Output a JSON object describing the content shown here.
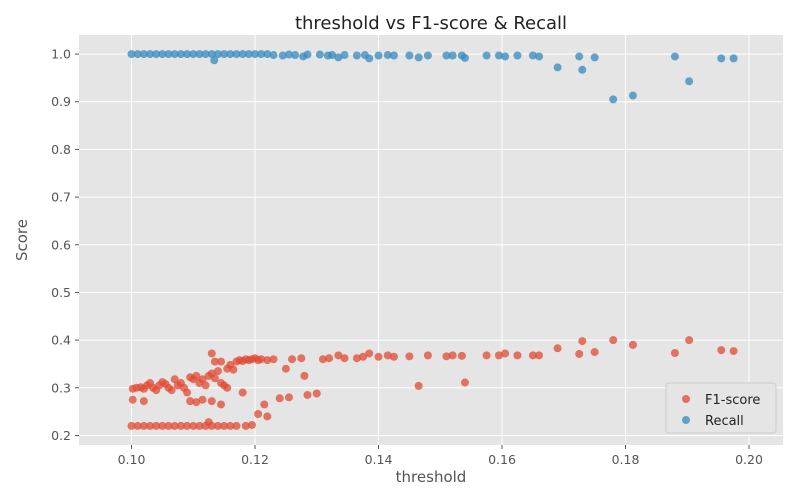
{
  "chart_data": {
    "type": "scatter",
    "title": "threshold vs F1-score & Recall",
    "xlabel": "threshold",
    "ylabel": "Score",
    "xlim": [
      0.0915,
      0.2055
    ],
    "ylim": [
      0.18,
      1.04
    ],
    "xticks": [
      0.1,
      0.12,
      0.14,
      0.16,
      0.18,
      0.2
    ],
    "xtick_labels": [
      "0.10",
      "0.12",
      "0.14",
      "0.16",
      "0.18",
      "0.20"
    ],
    "yticks": [
      0.2,
      0.3,
      0.4,
      0.5,
      0.6,
      0.7,
      0.8,
      0.9,
      1.0
    ],
    "ytick_labels": [
      "0.2",
      "0.3",
      "0.4",
      "0.5",
      "0.6",
      "0.7",
      "0.8",
      "0.9",
      "1.0"
    ],
    "grid": true,
    "legend_position": "bottom-right",
    "background": "#e5e5e5",
    "series": [
      {
        "name": "F1-score",
        "color": "#e24a33",
        "points": [
          [
            0.1,
            0.22
          ],
          [
            0.101,
            0.22
          ],
          [
            0.102,
            0.22
          ],
          [
            0.103,
            0.22
          ],
          [
            0.104,
            0.22
          ],
          [
            0.105,
            0.22
          ],
          [
            0.106,
            0.22
          ],
          [
            0.107,
            0.22
          ],
          [
            0.108,
            0.22
          ],
          [
            0.109,
            0.22
          ],
          [
            0.11,
            0.22
          ],
          [
            0.111,
            0.22
          ],
          [
            0.112,
            0.22
          ],
          [
            0.113,
            0.22
          ],
          [
            0.114,
            0.22
          ],
          [
            0.115,
            0.22
          ],
          [
            0.116,
            0.22
          ],
          [
            0.117,
            0.22
          ],
          [
            0.1185,
            0.22
          ],
          [
            0.1195,
            0.222
          ],
          [
            0.1002,
            0.298
          ],
          [
            0.1008,
            0.3
          ],
          [
            0.1015,
            0.301
          ],
          [
            0.102,
            0.298
          ],
          [
            0.1025,
            0.305
          ],
          [
            0.103,
            0.31
          ],
          [
            0.1035,
            0.3
          ],
          [
            0.104,
            0.295
          ],
          [
            0.1045,
            0.305
          ],
          [
            0.105,
            0.312
          ],
          [
            0.1055,
            0.308
          ],
          [
            0.106,
            0.3
          ],
          [
            0.1065,
            0.295
          ],
          [
            0.107,
            0.318
          ],
          [
            0.1075,
            0.305
          ],
          [
            0.108,
            0.31
          ],
          [
            0.1085,
            0.3
          ],
          [
            0.109,
            0.29
          ],
          [
            0.1095,
            0.322
          ],
          [
            0.11,
            0.318
          ],
          [
            0.1105,
            0.325
          ],
          [
            0.111,
            0.31
          ],
          [
            0.1115,
            0.318
          ],
          [
            0.112,
            0.305
          ],
          [
            0.1125,
            0.325
          ],
          [
            0.113,
            0.33
          ],
          [
            0.1135,
            0.32
          ],
          [
            0.114,
            0.335
          ],
          [
            0.1145,
            0.31
          ],
          [
            0.115,
            0.305
          ],
          [
            0.1155,
            0.34
          ],
          [
            0.116,
            0.348
          ],
          [
            0.1165,
            0.338
          ],
          [
            0.117,
            0.355
          ],
          [
            0.1175,
            0.358
          ],
          [
            0.118,
            0.356
          ],
          [
            0.1185,
            0.36
          ],
          [
            0.119,
            0.358
          ],
          [
            0.1195,
            0.36
          ],
          [
            0.12,
            0.362
          ],
          [
            0.1205,
            0.358
          ],
          [
            0.121,
            0.36
          ],
          [
            0.122,
            0.358
          ],
          [
            0.123,
            0.36
          ],
          [
            0.1002,
            0.275
          ],
          [
            0.102,
            0.272
          ],
          [
            0.1095,
            0.272
          ],
          [
            0.1105,
            0.27
          ],
          [
            0.1115,
            0.275
          ],
          [
            0.113,
            0.272
          ],
          [
            0.1145,
            0.265
          ],
          [
            0.1125,
            0.228
          ],
          [
            0.113,
            0.372
          ],
          [
            0.1135,
            0.355
          ],
          [
            0.1145,
            0.355
          ],
          [
            0.1155,
            0.3
          ],
          [
            0.118,
            0.29
          ],
          [
            0.1205,
            0.245
          ],
          [
            0.1215,
            0.265
          ],
          [
            0.122,
            0.24
          ],
          [
            0.124,
            0.278
          ],
          [
            0.125,
            0.34
          ],
          [
            0.1255,
            0.28
          ],
          [
            0.126,
            0.36
          ],
          [
            0.1275,
            0.362
          ],
          [
            0.128,
            0.325
          ],
          [
            0.1285,
            0.285
          ],
          [
            0.13,
            0.288
          ],
          [
            0.131,
            0.36
          ],
          [
            0.132,
            0.362
          ],
          [
            0.1335,
            0.368
          ],
          [
            0.1345,
            0.362
          ],
          [
            0.1365,
            0.362
          ],
          [
            0.1375,
            0.365
          ],
          [
            0.1385,
            0.372
          ],
          [
            0.14,
            0.365
          ],
          [
            0.1415,
            0.368
          ],
          [
            0.1425,
            0.365
          ],
          [
            0.145,
            0.366
          ],
          [
            0.1465,
            0.304
          ],
          [
            0.148,
            0.368
          ],
          [
            0.151,
            0.366
          ],
          [
            0.152,
            0.368
          ],
          [
            0.1535,
            0.367
          ],
          [
            0.154,
            0.311
          ],
          [
            0.1575,
            0.368
          ],
          [
            0.1595,
            0.368
          ],
          [
            0.1605,
            0.372
          ],
          [
            0.1625,
            0.368
          ],
          [
            0.165,
            0.368
          ],
          [
            0.166,
            0.368
          ],
          [
            0.169,
            0.383
          ],
          [
            0.1725,
            0.371
          ],
          [
            0.173,
            0.398
          ],
          [
            0.175,
            0.375
          ],
          [
            0.178,
            0.4
          ],
          [
            0.1812,
            0.39
          ],
          [
            0.188,
            0.373
          ],
          [
            0.1903,
            0.4
          ],
          [
            0.1955,
            0.379
          ],
          [
            0.1975,
            0.377
          ]
        ]
      },
      {
        "name": "Recall",
        "color": "#348abd",
        "points": [
          [
            0.1,
            1.0
          ],
          [
            0.101,
            1.0
          ],
          [
            0.102,
            1.0
          ],
          [
            0.103,
            1.0
          ],
          [
            0.104,
            1.0
          ],
          [
            0.105,
            1.0
          ],
          [
            0.106,
            1.0
          ],
          [
            0.107,
            1.0
          ],
          [
            0.108,
            1.0
          ],
          [
            0.109,
            1.0
          ],
          [
            0.11,
            1.0
          ],
          [
            0.111,
            1.0
          ],
          [
            0.112,
            1.0
          ],
          [
            0.113,
            1.0
          ],
          [
            0.114,
            1.0
          ],
          [
            0.115,
            1.0
          ],
          [
            0.116,
            1.0
          ],
          [
            0.117,
            1.0
          ],
          [
            0.118,
            1.0
          ],
          [
            0.119,
            1.0
          ],
          [
            0.12,
            1.0
          ],
          [
            0.121,
            1.0
          ],
          [
            0.122,
            1.0
          ],
          [
            0.123,
            0.998
          ],
          [
            0.1134,
            0.987
          ],
          [
            0.1245,
            0.997
          ],
          [
            0.1255,
            0.999
          ],
          [
            0.1265,
            0.998
          ],
          [
            0.1278,
            0.995
          ],
          [
            0.1285,
            0.999
          ],
          [
            0.1305,
            0.999
          ],
          [
            0.1318,
            0.997
          ],
          [
            0.1325,
            0.998
          ],
          [
            0.1335,
            0.993
          ],
          [
            0.1345,
            0.998
          ],
          [
            0.1365,
            0.997
          ],
          [
            0.1378,
            0.998
          ],
          [
            0.1385,
            0.991
          ],
          [
            0.14,
            0.997
          ],
          [
            0.1415,
            0.998
          ],
          [
            0.1425,
            0.997
          ],
          [
            0.145,
            0.997
          ],
          [
            0.1465,
            0.993
          ],
          [
            0.148,
            0.997
          ],
          [
            0.151,
            0.997
          ],
          [
            0.152,
            0.997
          ],
          [
            0.1535,
            0.997
          ],
          [
            0.154,
            0.992
          ],
          [
            0.1575,
            0.997
          ],
          [
            0.1595,
            0.997
          ],
          [
            0.1605,
            0.995
          ],
          [
            0.1625,
            0.997
          ],
          [
            0.165,
            0.997
          ],
          [
            0.166,
            0.995
          ],
          [
            0.169,
            0.972
          ],
          [
            0.1725,
            0.995
          ],
          [
            0.173,
            0.967
          ],
          [
            0.175,
            0.993
          ],
          [
            0.178,
            0.905
          ],
          [
            0.1812,
            0.913
          ],
          [
            0.188,
            0.995
          ],
          [
            0.1903,
            0.943
          ],
          [
            0.1955,
            0.991
          ],
          [
            0.1975,
            0.991
          ]
        ]
      }
    ]
  }
}
